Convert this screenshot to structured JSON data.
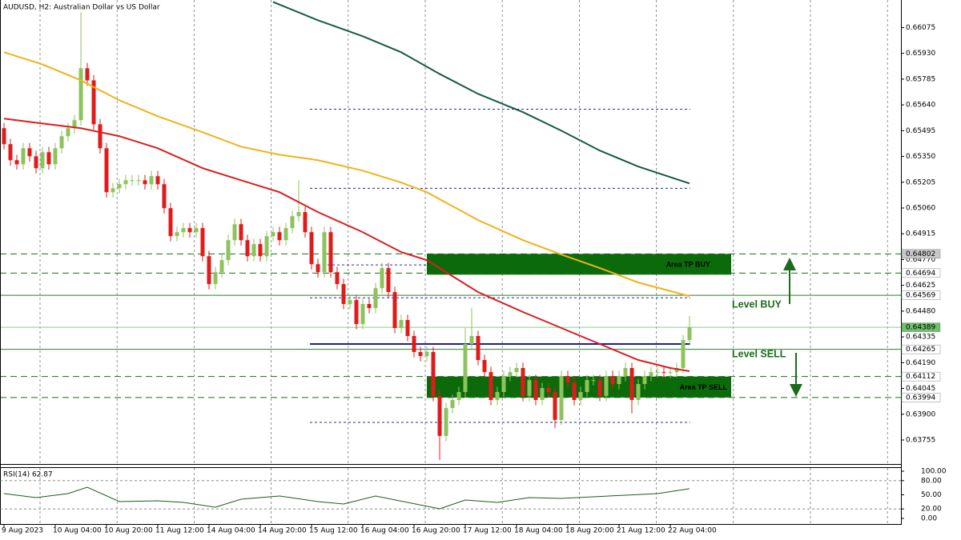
{
  "chart_data": [
    {
      "type": "candlestick",
      "title": "AUDUSD, H2:  Australian Dollar vs US Dollar",
      "categories": [
        "9 Aug 2023",
        null,
        null,
        null,
        null,
        null,
        null,
        null,
        "10 Aug 04:00",
        null,
        null,
        null,
        null,
        null,
        null,
        null,
        "10 Aug 20:00",
        null,
        null,
        null,
        null,
        null,
        null,
        null,
        "11 Aug 12:00",
        null,
        null,
        null,
        null,
        null,
        null,
        null,
        "14 Aug 04:00",
        null,
        null,
        null,
        null,
        null,
        null,
        null,
        "14 Aug 20:00",
        null,
        null,
        null,
        null,
        null,
        null,
        null,
        "15 Aug 12:00",
        null,
        null,
        null,
        null,
        null,
        null,
        null,
        "16 Aug 04:00",
        null,
        null,
        null,
        null,
        null,
        null,
        null,
        "16 Aug 20:00",
        null,
        null,
        null,
        null,
        null,
        null,
        null,
        "17 Aug 12:00",
        null,
        null,
        null,
        null,
        null,
        null,
        null,
        "18 Aug 04:00",
        null,
        null,
        null,
        null,
        null,
        null,
        null,
        "18 Aug 20:00",
        null,
        null,
        null,
        null,
        null,
        null,
        null,
        "21 Aug 12:00",
        null,
        null,
        null,
        null,
        null,
        null,
        null,
        "22 Aug 04:00",
        null,
        null,
        null
      ],
      "series": [
        {
          "up_color": "#8dc35c",
          "down_color": "#e01b1b",
          "open": [
            0.65509,
            0.65419,
            0.65329,
            0.65306,
            0.65396,
            0.65351,
            0.65284,
            0.65374,
            0.65306,
            0.65396,
            0.65464,
            0.65509,
            0.65554,
            0.65846,
            0.65778,
            0.65531,
            0.65396,
            0.65149,
            0.65171,
            0.65194,
            0.65216,
            0.65216,
            0.65216,
            0.65194,
            0.65239,
            0.65194,
            0.65059,
            0.64902,
            0.64924,
            0.64947,
            0.64924,
            0.64947,
            0.64789,
            0.64632,
            0.64699,
            0.64767,
            0.64879,
            0.64969,
            0.64879,
            0.64789,
            0.64857,
            0.64789,
            0.64902,
            0.64924,
            0.64879,
            0.64947,
            0.65014,
            0.65037,
            0.64924,
            0.64744,
            0.64699,
            0.64924,
            0.64699,
            0.64632,
            0.6452,
            0.64542,
            0.64407,
            0.6452,
            0.64497,
            0.64609,
            0.64722,
            0.64587,
            0.64385,
            0.6443,
            0.6434,
            0.6425,
            0.64227,
            0.6425,
            0.64003,
            0.63778,
            0.63935,
            0.6398,
            0.64025,
            0.64295,
            0.6434,
            0.64205,
            0.64137,
            0.6398,
            0.64025,
            0.64115,
            0.64137,
            0.6416,
            0.64003,
            0.64092,
            0.6398,
            0.64047,
            0.64025,
            0.63868,
            0.64115,
            0.64079,
            0.6398,
            0.64025,
            0.64092,
            0.64092,
            0.64003,
            0.64115,
            0.6407,
            0.64115,
            0.6416,
            0.6398,
            0.6407,
            0.64115,
            0.64137,
            0.64137,
            0.64133,
            0.64137,
            0.6416,
            0.64317
          ],
          "high": [
            0.65539,
            0.65449,
            0.65359,
            0.65426,
            0.65426,
            0.65381,
            0.65404,
            0.65404,
            0.65426,
            0.65494,
            0.65539,
            0.65584,
            0.66161,
            0.65876,
            0.65808,
            0.65561,
            0.65426,
            0.65201,
            0.65224,
            0.65246,
            0.65246,
            0.65246,
            0.65246,
            0.65269,
            0.65269,
            0.65224,
            0.65089,
            0.64954,
            0.64977,
            0.64977,
            0.64977,
            0.64977,
            0.64819,
            0.64729,
            0.64797,
            0.64909,
            0.64999,
            0.64999,
            0.64909,
            0.64887,
            0.64887,
            0.64932,
            0.64954,
            0.64954,
            0.64977,
            0.65044,
            0.65216,
            0.65067,
            0.64954,
            0.64774,
            0.64954,
            0.64954,
            0.64729,
            0.64662,
            0.64572,
            0.64572,
            0.6455,
            0.6455,
            0.64639,
            0.64752,
            0.64752,
            0.64617,
            0.6446,
            0.6446,
            0.6437,
            0.6428,
            0.6428,
            0.6428,
            0.64033,
            0.63965,
            0.6401,
            0.64055,
            0.64385,
            0.64497,
            0.6437,
            0.64235,
            0.64167,
            0.64055,
            0.64145,
            0.64167,
            0.6419,
            0.6419,
            0.64122,
            0.64122,
            0.64077,
            0.64077,
            0.64055,
            0.64145,
            0.64145,
            0.64109,
            0.64055,
            0.64122,
            0.64122,
            0.64122,
            0.64145,
            0.64145,
            0.64145,
            0.6419,
            0.6419,
            0.641,
            0.64145,
            0.64167,
            0.64167,
            0.64167,
            0.64167,
            0.6419,
            0.64347,
            0.64452
          ],
          "low": [
            0.65389,
            0.65299,
            0.65276,
            0.65276,
            0.65321,
            0.65254,
            0.65254,
            0.65276,
            0.65276,
            0.65366,
            0.65434,
            0.65479,
            0.65524,
            0.65748,
            0.65501,
            0.65366,
            0.65119,
            0.65119,
            0.65141,
            0.65164,
            0.65186,
            0.65186,
            0.65164,
            0.65164,
            0.65164,
            0.65029,
            0.64872,
            0.64872,
            0.64894,
            0.64894,
            0.64894,
            0.64759,
            0.64602,
            0.64602,
            0.64669,
            0.64737,
            0.64849,
            0.64849,
            0.64759,
            0.64759,
            0.64759,
            0.64759,
            0.64872,
            0.64849,
            0.64849,
            0.64917,
            0.64984,
            0.64894,
            0.64714,
            0.64669,
            0.64669,
            0.64669,
            0.64602,
            0.6449,
            0.6449,
            0.64377,
            0.64377,
            0.64467,
            0.64467,
            0.64579,
            0.64557,
            0.64355,
            0.64355,
            0.6431,
            0.6422,
            0.64197,
            0.64197,
            0.63973,
            0.63643,
            0.63748,
            0.63905,
            0.6395,
            0.63995,
            0.64265,
            0.64175,
            0.64107,
            0.6395,
            0.6395,
            0.63995,
            0.64085,
            0.64107,
            0.63973,
            0.63973,
            0.6395,
            0.6395,
            0.63995,
            0.63823,
            0.63838,
            0.64049,
            0.6395,
            0.6395,
            0.63995,
            0.64062,
            0.63973,
            0.63973,
            0.6404,
            0.6404,
            0.64085,
            0.63905,
            0.6395,
            0.6404,
            0.64085,
            0.64107,
            0.64103,
            0.64103,
            0.64107,
            0.6413,
            0.64287
          ],
          "close": [
            0.65419,
            0.65329,
            0.65306,
            0.65396,
            0.65351,
            0.65284,
            0.65374,
            0.65306,
            0.65396,
            0.65464,
            0.65509,
            0.65554,
            0.65846,
            0.65778,
            0.65531,
            0.65396,
            0.65149,
            0.65171,
            0.65194,
            0.65216,
            0.65216,
            0.65216,
            0.65194,
            0.65239,
            0.65194,
            0.65059,
            0.64902,
            0.64924,
            0.64947,
            0.64924,
            0.64947,
            0.64789,
            0.64632,
            0.64699,
            0.64767,
            0.64879,
            0.64969,
            0.64879,
            0.64789,
            0.64857,
            0.64789,
            0.64902,
            0.64924,
            0.64879,
            0.64947,
            0.65014,
            0.65037,
            0.64924,
            0.64744,
            0.64699,
            0.64924,
            0.64699,
            0.64632,
            0.6452,
            0.64542,
            0.64407,
            0.6452,
            0.64497,
            0.64609,
            0.64722,
            0.64587,
            0.64385,
            0.6443,
            0.6434,
            0.6425,
            0.64227,
            0.6425,
            0.64003,
            0.63778,
            0.63935,
            0.6398,
            0.64025,
            0.64295,
            0.6434,
            0.64205,
            0.64137,
            0.6398,
            0.64025,
            0.64115,
            0.64137,
            0.6416,
            0.64003,
            0.64092,
            0.6398,
            0.64047,
            0.64025,
            0.63868,
            0.64115,
            0.64079,
            0.6398,
            0.64025,
            0.64092,
            0.64092,
            0.64003,
            0.64115,
            0.6407,
            0.64115,
            0.6416,
            0.6398,
            0.6407,
            0.64115,
            0.64137,
            0.64137,
            0.64133,
            0.64137,
            0.6416,
            0.64317,
            0.64389
          ]
        }
      ],
      "moving_averages": [
        {
          "color": "#d81e1e",
          "x": [
            0,
            5,
            12,
            18,
            24,
            31,
            37,
            43,
            49,
            56,
            62,
            66,
            69,
            74,
            81,
            87,
            93,
            99,
            104,
            107
          ],
          "values": [
            0.65563,
            0.6554,
            0.65509,
            0.65464,
            0.65396,
            0.65284,
            0.65216,
            0.65149,
            0.65037,
            0.64924,
            0.64812,
            0.64767,
            0.64699,
            0.64587,
            0.64475,
            0.64385,
            0.64295,
            0.64205,
            0.6416,
            0.64142
          ]
        },
        {
          "color": "#f0b21a",
          "x": [
            0,
            6,
            12,
            18,
            24,
            31,
            37,
            43,
            49,
            56,
            62,
            66,
            74,
            81,
            87,
            93,
            99,
            107
          ],
          "values": [
            0.65936,
            0.65868,
            0.65778,
            0.65666,
            0.65576,
            0.65486,
            0.65405,
            0.6536,
            0.65329,
            0.6527,
            0.65203,
            0.65149,
            0.64992,
            0.64879,
            0.64798,
            0.64722,
            0.64641,
            0.64564
          ]
        },
        {
          "color": "#145a46",
          "x": [
            42,
            49,
            56,
            62,
            68,
            74,
            81,
            87,
            93,
            99,
            107
          ],
          "values": [
            0.66219,
            0.66116,
            0.66026,
            0.65936,
            0.65814,
            0.65702,
            0.65599,
            0.65495,
            0.65383,
            0.65293,
            0.65198
          ]
        }
      ],
      "ylim": [
        0.6362,
        0.6623
      ],
      "yticks": [
        0.66075,
        {
          "value": 0.6593,
          "label": "0.65930"
        },
        0.65785,
        {
          "value": 0.6564,
          "label": "0.65640"
        },
        0.65495,
        {
          "value": 0.6535,
          "label": "0.65350"
        },
        0.65205,
        {
          "value": 0.6506,
          "label": "0.65060"
        },
        0.64915,
        {
          "value": 0.6477,
          "label": "0.64770"
        },
        0.64625,
        {
          "value": 0.6448,
          "label": "0.64480"
        },
        0.64335,
        {
          "value": 0.6419,
          "label": "0.64190"
        },
        0.64045,
        {
          "value": 0.639,
          "label": "0.63900"
        },
        0.63755
      ],
      "levels": [
        {
          "value": 0.64802,
          "style": "dashed",
          "color": "#1f6b1f",
          "label_bg": "#c8c8c8",
          "label_color": "#000000"
        },
        {
          "value": 0.64694,
          "style": "dashed",
          "color": "#1f6b1f",
          "label_bg": "#ffffff",
          "label_color": "#000000"
        },
        {
          "value": 0.64569,
          "style": "solid",
          "color": "#2f7d2f",
          "label_bg": "#ffffff",
          "label_color": "#000000"
        },
        {
          "value": 0.64389,
          "style": "solid",
          "color": "#86cf86",
          "label_bg": "#6cbf6c",
          "label_color": "#ffffff"
        },
        {
          "value": 0.64265,
          "style": "solid",
          "color": "#2f7d2f",
          "label_bg": "#ffffff",
          "label_color": "#000000"
        },
        {
          "value": 0.64112,
          "style": "dashed",
          "color": "#1f6b1f",
          "label_bg": "#ffffff",
          "label_color": "#000000"
        },
        {
          "value": 0.63994,
          "style": "dashed",
          "color": "#1f6b1f",
          "label_bg": "#ffffff",
          "label_color": "#000000"
        }
      ],
      "guides": [
        {
          "value": 0.65616,
          "from": 48,
          "to": 107,
          "style": "dotted",
          "color": "#2a2aa8"
        },
        {
          "value": 0.65171,
          "from": 48,
          "to": 107,
          "style": "dotted",
          "color": "#2a2aa8"
        },
        {
          "value": 0.6474,
          "from": 50,
          "to": 66,
          "style": "dotted",
          "color": "#2a2aa8"
        },
        {
          "value": 0.64555,
          "from": 48,
          "to": 107,
          "style": "dotted",
          "color": "#2a2aa8"
        },
        {
          "value": 0.64295,
          "from": 48,
          "to": 107,
          "style": "solid",
          "color": "#1d1d9a"
        },
        {
          "value": 0.63854,
          "from": 48,
          "to": 107,
          "style": "dotted",
          "color": "#2a2aa8"
        }
      ],
      "zones": [
        {
          "label": "Area TP BUY",
          "top": 0.64802,
          "bottom": 0.64685,
          "from": 66,
          "to": 113.5,
          "color": "#0b6b0b"
        },
        {
          "label": "Area TP SELL",
          "top": 0.64112,
          "bottom": 0.63994,
          "from": 66,
          "to": 113.5,
          "color": "#0b6b0b"
        }
      ],
      "annotations": [
        "Level BUY",
        "Level SELL"
      ]
    },
    {
      "type": "line",
      "title": "RSI(14) 62.87",
      "color": "#1f5a1f",
      "x": [
        0,
        5,
        10,
        13,
        18,
        24,
        28,
        33,
        37,
        43,
        49,
        53,
        58,
        63,
        68,
        72,
        77,
        82,
        87,
        92,
        97,
        102,
        107
      ],
      "values": [
        52.5,
        44.1,
        52.5,
        66.1,
        35.6,
        37.3,
        33.9,
        23.7,
        40.7,
        47.5,
        35.6,
        30.5,
        47.5,
        33.9,
        20.3,
        39.0,
        33.9,
        44.1,
        42.4,
        45.8,
        49.2,
        52.5,
        62.87
      ],
      "ylim": [
        0,
        100
      ],
      "yticks": [
        {
          "value": 100,
          "label": "100.00"
        },
        {
          "value": 80,
          "label": "80.00"
        },
        {
          "value": 50,
          "label": "50.00"
        },
        {
          "value": 20,
          "label": "20.00"
        },
        {
          "value": 0,
          "label": "0.00"
        }
      ],
      "dashed_levels": [
        80,
        20
      ]
    }
  ]
}
